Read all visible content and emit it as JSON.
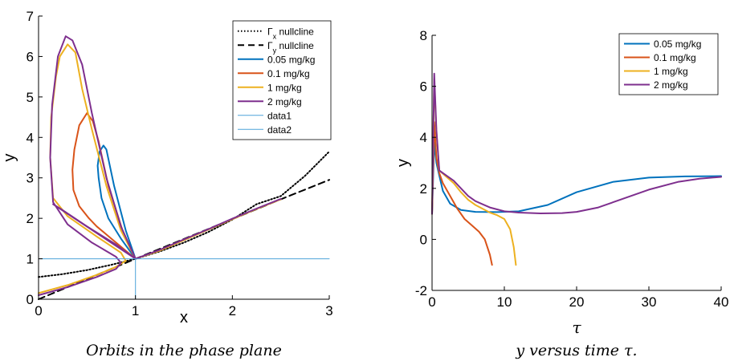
{
  "chart_data": [
    {
      "type": "line",
      "xlabel": "x",
      "ylabel": "y",
      "xlim": [
        0,
        3
      ],
      "ylim": [
        0,
        7
      ],
      "xticks": [
        "0",
        "1",
        "2",
        "3"
      ],
      "yticks": [
        "0",
        "1",
        "2",
        "3",
        "4",
        "5",
        "6",
        "7"
      ],
      "legend_position": "top-right",
      "caption": "Orbits in the phase plane",
      "colors": {
        "dose1": "#0072BD",
        "dose2": "#D95319",
        "dose3": "#EDB120",
        "dose4": "#7E2F8E",
        "data": "#4DA3D9"
      },
      "legend": [
        {
          "label": "Γ",
          "sub": "x",
          "rest": " nullcline",
          "style": "dotted",
          "color": "#000000"
        },
        {
          "label": "Γ",
          "sub": "y",
          "rest": " nullcline",
          "style": "dashed",
          "color": "#000000"
        },
        {
          "label": "0.05 mg/kg",
          "color": "#0072BD"
        },
        {
          "label": "0.1 mg/kg",
          "color": "#D95319"
        },
        {
          "label": "1 mg/kg",
          "color": "#EDB120"
        },
        {
          "label": "2 mg/kg",
          "color": "#7E2F8E"
        },
        {
          "label": "data1",
          "color": "#4DA3D9"
        },
        {
          "label": "data2",
          "color": "#4DA3D9"
        }
      ],
      "series": [
        {
          "name": "Γx nullcline",
          "x": [
            0,
            0.25,
            0.5,
            0.75,
            1.0,
            1.25,
            1.5,
            1.75,
            2.0,
            2.25,
            2.5,
            2.75,
            3.0
          ],
          "y": [
            0.55,
            0.62,
            0.72,
            0.85,
            1.0,
            1.18,
            1.4,
            1.66,
            1.97,
            2.35,
            2.55,
            3.05,
            3.65
          ]
        },
        {
          "name": "Γy nullcline",
          "x": [
            0,
            0.5,
            1.0,
            1.5,
            2.0,
            2.5,
            3.0
          ],
          "y": [
            0.0,
            0.5,
            1.0,
            1.49,
            1.98,
            2.47,
            2.95
          ]
        },
        {
          "name": "0.05 mg/kg",
          "x": [
            1.0,
            0.85,
            0.72,
            0.65,
            0.62,
            0.61,
            0.63,
            0.67,
            0.7,
            0.78,
            0.9,
            1.0
          ],
          "y": [
            1.0,
            1.5,
            2.0,
            2.5,
            3.0,
            3.3,
            3.65,
            3.8,
            3.7,
            2.8,
            1.7,
            1.0
          ]
        },
        {
          "name": "0.1 mg/kg",
          "x": [
            1.0,
            0.75,
            0.6,
            0.52,
            0.42,
            0.36,
            0.35,
            0.37,
            0.42,
            0.5,
            0.56,
            0.62,
            0.72,
            0.88,
            1.0
          ],
          "y": [
            1.0,
            1.5,
            1.8,
            2.0,
            2.3,
            2.7,
            3.2,
            3.7,
            4.3,
            4.6,
            4.4,
            3.9,
            2.8,
            1.6,
            1.0
          ]
        },
        {
          "name": "1 mg/kg",
          "x": [
            0.0,
            0.3,
            0.6,
            0.8,
            0.9,
            0.85,
            0.6,
            0.3,
            0.15,
            0.12,
            0.13,
            0.18,
            0.22,
            0.3,
            0.38,
            0.45,
            0.55,
            0.7,
            0.85,
            1.0,
            1.25,
            1.5,
            1.75,
            2.0,
            2.25,
            2.5
          ],
          "y": [
            0.15,
            0.35,
            0.6,
            0.8,
            0.95,
            1.15,
            1.55,
            2.05,
            2.5,
            3.5,
            4.5,
            5.5,
            6.0,
            6.3,
            6.1,
            5.2,
            4.2,
            2.8,
            1.7,
            1.0,
            1.2,
            1.46,
            1.72,
            1.98,
            2.23,
            2.47
          ]
        },
        {
          "name": "2 mg/kg",
          "x": [
            0.0,
            0.3,
            0.6,
            0.8,
            0.85,
            0.8,
            0.55,
            0.3,
            0.15,
            0.12,
            0.14,
            0.2,
            0.28,
            0.35,
            0.45,
            0.55,
            0.7,
            0.85,
            1.0,
            0.8,
            0.5,
            0.25,
            0.15,
            1.0,
            1.25,
            1.5,
            1.75,
            2.0,
            2.25,
            2.5
          ],
          "y": [
            0.1,
            0.3,
            0.55,
            0.75,
            0.9,
            1.05,
            1.4,
            1.85,
            2.4,
            3.5,
            4.8,
            6.0,
            6.5,
            6.4,
            5.8,
            4.6,
            3.0,
            1.8,
            1.0,
            1.35,
            1.8,
            2.2,
            2.35,
            1.0,
            1.22,
            1.48,
            1.73,
            1.99,
            2.24,
            2.48
          ]
        },
        {
          "name": "data1",
          "x": [
            0,
            3
          ],
          "y": [
            1,
            1
          ]
        },
        {
          "name": "data2",
          "x": [
            1,
            1
          ],
          "y": [
            0,
            1
          ]
        }
      ]
    },
    {
      "type": "line",
      "xlabel": "τ",
      "ylabel": "y",
      "xlim": [
        0,
        40
      ],
      "ylim": [
        -2,
        8
      ],
      "xticks": [
        "0",
        "10",
        "20",
        "30",
        "40"
      ],
      "yticks": [
        "-2",
        "0",
        "2",
        "4",
        "6",
        "8"
      ],
      "legend_position": "top-right",
      "caption": "y versus time τ.",
      "legend": [
        {
          "label": "0.05 mg/kg",
          "color": "#0072BD"
        },
        {
          "label": "0.1 mg/kg",
          "color": "#D95319"
        },
        {
          "label": "1 mg/kg",
          "color": "#EDB120"
        },
        {
          "label": "2 mg/kg",
          "color": "#7E2F8E"
        }
      ],
      "series": [
        {
          "name": "0.05 mg/kg",
          "x": [
            0,
            0.3,
            0.6,
            1.0,
            1.5,
            2.5,
            4,
            6,
            9,
            12,
            16,
            20,
            25,
            30,
            35,
            40
          ],
          "y": [
            1.0,
            3.8,
            3.0,
            2.5,
            1.9,
            1.4,
            1.15,
            1.08,
            1.07,
            1.1,
            1.35,
            1.85,
            2.25,
            2.42,
            2.47,
            2.48
          ]
        },
        {
          "name": "0.1 mg/kg",
          "x": [
            0,
            0.3,
            0.6,
            1.0,
            1.5,
            2.5,
            3.5,
            4.5,
            5.5,
            6.5,
            7.3,
            8.0,
            8.3
          ],
          "y": [
            1.0,
            4.6,
            3.2,
            2.6,
            2.2,
            1.7,
            1.2,
            0.8,
            0.55,
            0.3,
            0.0,
            -0.6,
            -1.0
          ]
        },
        {
          "name": "1 mg/kg",
          "x": [
            0,
            0.3,
            0.6,
            1.0,
            2,
            3,
            4,
            5,
            6,
            7,
            8,
            9,
            10,
            10.8,
            11.3,
            11.6
          ],
          "y": [
            1.0,
            6.3,
            4.2,
            2.7,
            2.45,
            2.2,
            1.85,
            1.55,
            1.35,
            1.2,
            1.05,
            0.95,
            0.8,
            0.4,
            -0.3,
            -1.0
          ]
        },
        {
          "name": "2 mg/kg",
          "x": [
            0,
            0.3,
            0.6,
            1.0,
            2,
            3,
            4,
            5,
            6,
            8,
            10,
            12,
            15,
            18,
            20,
            23,
            26,
            30,
            34,
            37,
            40
          ],
          "y": [
            1.0,
            6.5,
            4.3,
            2.7,
            2.5,
            2.3,
            2.0,
            1.7,
            1.5,
            1.25,
            1.1,
            1.05,
            1.02,
            1.03,
            1.08,
            1.25,
            1.55,
            1.95,
            2.25,
            2.38,
            2.45
          ]
        }
      ]
    }
  ]
}
